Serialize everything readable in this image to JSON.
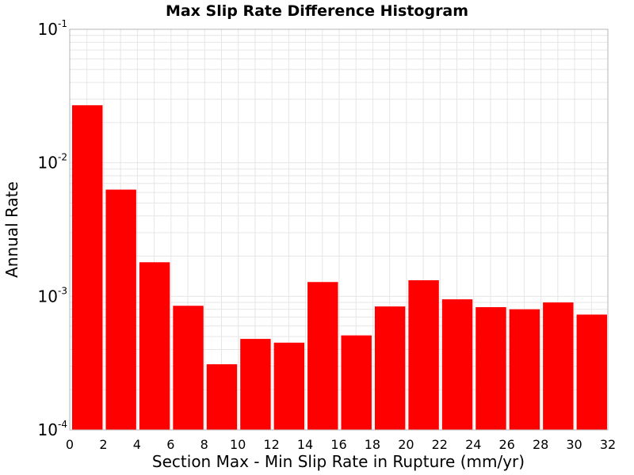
{
  "chart_data": {
    "type": "bar",
    "title": "Max Slip Rate Difference Histogram",
    "xlabel": "Section Max - Min Slip Rate in Rupture (mm/yr)",
    "ylabel": "Annual Rate",
    "xlim": [
      0,
      32
    ],
    "ylim": [
      0.0001,
      0.1
    ],
    "yscale": "log",
    "bin_width": 2,
    "bin_starts": [
      0,
      2,
      4,
      6,
      8,
      10,
      12,
      14,
      16,
      18,
      20,
      22,
      24,
      26,
      28,
      30
    ],
    "values": [
      0.027,
      0.0063,
      0.0018,
      0.00085,
      0.00031,
      0.00048,
      0.00045,
      0.00128,
      0.00051,
      0.00084,
      0.00132,
      0.00095,
      0.00083,
      0.0008,
      0.0009,
      0.00073
    ],
    "x_ticks": [
      "0",
      "2",
      "4",
      "6",
      "8",
      "10",
      "12",
      "14",
      "16",
      "18",
      "20",
      "22",
      "24",
      "26",
      "28",
      "30",
      "32"
    ],
    "y_ticks": [
      {
        "value": 0.1,
        "base": "10",
        "exp": "-1"
      },
      {
        "value": 0.01,
        "base": "10",
        "exp": "-2"
      },
      {
        "value": 0.001,
        "base": "10",
        "exp": "-3"
      },
      {
        "value": 0.0001,
        "base": "10",
        "exp": "-4"
      }
    ],
    "grid": true,
    "colors": {
      "bar": "#ff0000",
      "grid": "#e6e6e6",
      "frame": "#b4b4b4"
    }
  }
}
